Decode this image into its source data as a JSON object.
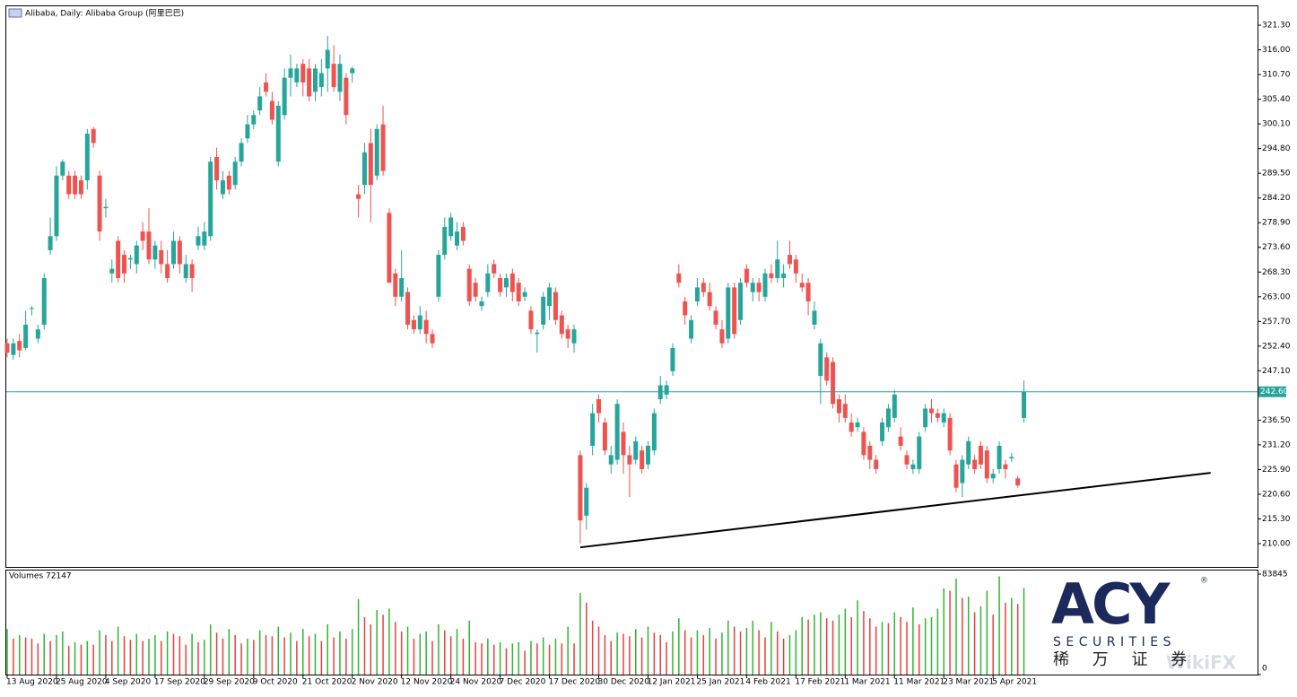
{
  "chart_data": [
    {
      "type": "candlestick",
      "title": "Alibaba, Daily:  Alibaba Group (阿里巴巴)",
      "categories": [
        "13 Aug 2020",
        null,
        null,
        null,
        null,
        null,
        null,
        null,
        "25 Aug 2020",
        null,
        null,
        null,
        null,
        null,
        null,
        null,
        "4 Sep 2020",
        null,
        null,
        null,
        null,
        null,
        null,
        null,
        "17 Sep 2020",
        null,
        null,
        null,
        null,
        null,
        null,
        null,
        "29 Sep 2020",
        null,
        null,
        null,
        null,
        null,
        null,
        null,
        "9 Oct 2020",
        null,
        null,
        null,
        null,
        null,
        null,
        null,
        "21 Oct 2020",
        null,
        null,
        null,
        null,
        null,
        null,
        null,
        "2 Nov 2020",
        null,
        null,
        null,
        null,
        null,
        null,
        null,
        "12 Nov 2020",
        null,
        null,
        null,
        null,
        null,
        null,
        null,
        "24 Nov 2020",
        null,
        null,
        null,
        null,
        null,
        null,
        null,
        "7 Dec 2020",
        null,
        null,
        null,
        null,
        null,
        null,
        null,
        "17 Dec 2020",
        null,
        null,
        null,
        null,
        null,
        null,
        null,
        "30 Dec 2020",
        null,
        null,
        null,
        null,
        null,
        null,
        null,
        "12 Jan 2021",
        null,
        null,
        null,
        null,
        null,
        null,
        null,
        "25 Jan 2021",
        null,
        null,
        null,
        null,
        null,
        null,
        null,
        "4 Feb 2021",
        null,
        null,
        null,
        null,
        null,
        null,
        null,
        "17 Feb 2021",
        null,
        null,
        null,
        null,
        null,
        null,
        null,
        "1 Mar 2021",
        null,
        null,
        null,
        null,
        null,
        null,
        null,
        "11 Mar 2021",
        null,
        null,
        null,
        null,
        null,
        null,
        null,
        "23 Mar 2021",
        null,
        null,
        null,
        null,
        null,
        null,
        null,
        "5 Apr 2021",
        null,
        null,
        null,
        null,
        null
      ],
      "open": [
        253,
        250.5,
        253.5,
        252,
        260.5,
        254,
        257,
        273,
        276,
        289,
        289,
        289,
        288,
        288,
        299,
        289,
        282,
        268,
        275,
        272,
        271,
        270,
        277,
        277,
        271,
        273,
        270,
        270,
        275,
        267,
        270,
        274,
        274,
        276,
        293,
        285,
        289,
        287,
        292,
        297,
        300,
        303,
        309,
        305,
        292,
        302,
        310,
        309,
        313,
        312,
        307,
        308,
        312,
        313,
        307,
        310,
        311,
        285,
        287,
        296,
        289,
        300,
        281,
        268,
        263,
        264,
        258,
        256,
        258,
        255,
        263,
        272,
        276,
        274,
        278,
        269,
        266,
        261,
        264,
        270,
        267,
        265,
        268,
        266,
        263,
        260,
        255,
        257,
        261,
        264,
        259,
        256,
        253,
        229,
        216,
        231,
        241,
        236,
        227,
        228,
        234,
        229,
        228,
        230,
        227,
        230,
        241,
        242,
        247,
        268,
        262,
        254,
        262,
        266,
        264,
        260,
        256,
        254,
        265,
        258,
        269,
        264,
        266,
        263,
        268,
        267,
        267,
        272,
        271,
        266,
        266,
        257,
        246,
        250,
        249,
        241,
        240,
        236,
        235,
        234,
        231,
        228,
        232,
        235,
        237,
        233,
        229,
        226,
        226,
        235,
        239,
        238,
        236,
        237,
        227,
        223,
        227,
        228,
        231,
        230,
        224,
        226,
        227,
        228.3,
        224,
        237
      ],
      "high": [
        254,
        254,
        255,
        260,
        261,
        257,
        268,
        280,
        291,
        292.5,
        290,
        290,
        289,
        299,
        299.5,
        290,
        284,
        271,
        276,
        273,
        272,
        275,
        279,
        282,
        275,
        275,
        273,
        277,
        276,
        272,
        271,
        278,
        279,
        293,
        295,
        290,
        290,
        293,
        297,
        302,
        303,
        308,
        311,
        307,
        305,
        312,
        315,
        313,
        314,
        314,
        313,
        314,
        319,
        317,
        315,
        311,
        312.5,
        287,
        296,
        299,
        300,
        304,
        282,
        269,
        273,
        265,
        259,
        261,
        260,
        256,
        273,
        280,
        281,
        279,
        279,
        270,
        267,
        263,
        270,
        271,
        268,
        268,
        269,
        267,
        265,
        261,
        256,
        264,
        266,
        265,
        260,
        257,
        257,
        230,
        223,
        240,
        242,
        237,
        231,
        241,
        236,
        231,
        233,
        231,
        232,
        239,
        246,
        245,
        253,
        270,
        263,
        259,
        267,
        267,
        266,
        261,
        258,
        266,
        266,
        267,
        270,
        267,
        267,
        269,
        270,
        275,
        270,
        275,
        272,
        268,
        267,
        262,
        254,
        251,
        250,
        242,
        242,
        238,
        237,
        235,
        232,
        229,
        237,
        240,
        243,
        235,
        230,
        228,
        234,
        240,
        241,
        239,
        239,
        238,
        228,
        229,
        233,
        229,
        232,
        231,
        226,
        232,
        228,
        229.5,
        224.5,
        245
      ],
      "low": [
        250,
        249.5,
        250,
        251.5,
        259,
        253,
        256,
        272,
        275,
        288,
        284,
        284,
        284,
        286,
        295,
        275,
        280,
        266,
        266,
        266,
        269,
        268,
        273,
        270,
        269,
        268,
        266,
        269,
        268,
        266,
        264,
        273,
        273,
        275,
        286,
        284,
        285,
        286,
        291,
        296,
        299,
        302,
        306,
        300,
        291,
        301,
        306,
        308,
        306,
        305,
        305,
        306,
        307,
        307,
        305,
        300,
        309,
        280,
        285,
        279,
        288,
        289,
        266,
        261,
        262,
        256,
        255,
        255,
        253,
        252,
        262,
        271,
        275,
        273,
        274,
        261,
        262,
        260,
        263,
        267,
        263,
        263,
        262,
        261,
        262,
        255,
        251,
        256,
        258,
        257,
        254,
        252,
        251,
        210,
        213,
        229,
        236,
        229,
        225,
        227,
        225,
        220,
        227,
        225,
        226,
        229,
        240,
        241,
        246,
        265,
        257,
        253,
        261,
        263,
        260,
        256,
        252,
        253,
        254,
        257,
        265,
        262,
        262,
        262,
        266,
        266,
        265,
        269,
        266,
        264,
        259,
        256,
        240,
        244,
        239,
        236,
        236,
        233,
        234,
        228,
        226,
        225,
        231,
        234,
        236,
        230,
        226,
        225,
        225,
        234,
        236,
        236,
        235,
        229,
        221,
        220,
        226,
        225,
        226,
        223,
        223,
        225,
        224,
        227.5,
        222,
        236
      ],
      "close": [
        251,
        253,
        251.5,
        257,
        260.6,
        256,
        267,
        276,
        289,
        292,
        285,
        285,
        285,
        298,
        296,
        277,
        282.3,
        269,
        267,
        268,
        271.3,
        274,
        275,
        271,
        274,
        270,
        267,
        275,
        270,
        270,
        267,
        276,
        277,
        292,
        288,
        288,
        286,
        292,
        296,
        300,
        302,
        306,
        307,
        301,
        304,
        310,
        312,
        312,
        309,
        306,
        312,
        311,
        316,
        308,
        313,
        302,
        312,
        284,
        294,
        287,
        299,
        290,
        266,
        263,
        267,
        257,
        256,
        259,
        255,
        253,
        272,
        278,
        280,
        277,
        275,
        262,
        263,
        262,
        268,
        268,
        264,
        267,
        264,
        262,
        264,
        256,
        255.3,
        263,
        265,
        258,
        255,
        254,
        256,
        215,
        222,
        238,
        238,
        230,
        229,
        240,
        229,
        227,
        232,
        226,
        231,
        238,
        244,
        244,
        252,
        266,
        259,
        258,
        265,
        264,
        261,
        257,
        253,
        265,
        255,
        266,
        266,
        266,
        264,
        268,
        267,
        271,
        268,
        270,
        268,
        265,
        262,
        260,
        253,
        245,
        240,
        238,
        237,
        234,
        236,
        229,
        228,
        226,
        236,
        239,
        242,
        231,
        227,
        227,
        233,
        239,
        238,
        237,
        238,
        230,
        222,
        228,
        232,
        226,
        227,
        224,
        225,
        231,
        226,
        228.6,
        222.5,
        242.6
      ],
      "up_color": "#26a69a",
      "down_color": "#ef5350",
      "ylim": [
        205.0,
        325.35
      ],
      "yticks": [
        {
          "value": 321.3,
          "label": "321.30"
        },
        {
          "value": 316,
          "label": "316.00"
        },
        {
          "value": 310.7,
          "label": "310.70"
        },
        {
          "value": 305.4,
          "label": "305.40"
        },
        {
          "value": 300.1,
          "label": "300.10"
        },
        {
          "value": 294.8,
          "label": "294.80"
        },
        {
          "value": 289.5,
          "label": "289.50"
        },
        {
          "value": 284.2,
          "label": "284.20"
        },
        {
          "value": 278.9,
          "label": "278.90"
        },
        {
          "value": 273.6,
          "label": "273.60"
        },
        {
          "value": 268.3,
          "label": "268.30"
        },
        {
          "value": 263,
          "label": "263.00"
        },
        {
          "value": 257.7,
          "label": "257.70"
        },
        {
          "value": 252.4,
          "label": "252.40"
        },
        {
          "value": 247.1,
          "label": "247.10"
        },
        {
          "value": 236.5,
          "label": "236.50"
        },
        {
          "value": 231.2,
          "label": "231.20"
        },
        {
          "value": 225.9,
          "label": "225.90"
        },
        {
          "value": 220.6,
          "label": "220.60"
        },
        {
          "value": 215.3,
          "label": "215.30"
        },
        {
          "value": 210,
          "label": "210.00"
        }
      ],
      "current_price": {
        "value": 242.6,
        "label": "242.60",
        "color": "#26a69a"
      },
      "trendline": {
        "x": [
          93,
          195.3
        ],
        "y": [
          209.2,
          225.2
        ],
        "color": "#000000"
      }
    },
    {
      "type": "bar",
      "title": "Volumes 72147",
      "values": [
        38000,
        30000,
        33000,
        31000,
        30000,
        26000,
        34000,
        28000,
        33000,
        36000,
        24000,
        27000,
        25000,
        28000,
        25000,
        37000,
        33000,
        28000,
        40000,
        32000,
        29000,
        34000,
        28000,
        30000,
        33000,
        28000,
        36000,
        34000,
        32000,
        25000,
        34000,
        27000,
        29000,
        42000,
        35000,
        30000,
        38000,
        33000,
        26000,
        30000,
        29000,
        37000,
        33000,
        32000,
        40000,
        31000,
        35000,
        28000,
        38000,
        32000,
        34000,
        28000,
        42000,
        31000,
        36000,
        30000,
        38000,
        63000,
        48000,
        42000,
        54000,
        50000,
        55000,
        44000,
        36000,
        40000,
        30000,
        34000,
        36000,
        28000,
        42000,
        37000,
        32000,
        38000,
        30000,
        45000,
        27000,
        26000,
        30000,
        25000,
        27000,
        22000,
        26000,
        27000,
        20000,
        28000,
        26000,
        31000,
        25000,
        30000,
        26000,
        40000,
        26000,
        68000,
        60000,
        45000,
        40000,
        33000,
        28000,
        35000,
        34000,
        32000,
        38000,
        31000,
        40000,
        35000,
        33000,
        27000,
        36000,
        47000,
        37000,
        31000,
        37000,
        33000,
        39000,
        30000,
        35000,
        45000,
        40000,
        36000,
        39000,
        45000,
        37000,
        31000,
        44000,
        36000,
        30000,
        33000,
        37000,
        48000,
        46000,
        50000,
        52000,
        47000,
        45000,
        50000,
        55000,
        48000,
        62000,
        53000,
        47000,
        40000,
        44000,
        43000,
        52000,
        48000,
        44000,
        56000,
        42000,
        47000,
        48000,
        55000,
        72000,
        70000,
        80000,
        64000,
        65000,
        52000,
        57000,
        70000,
        50000,
        82000,
        60000,
        64000,
        59000,
        72147
      ],
      "up_color": "#32b432",
      "down_color": "#e8403c",
      "ylim": [
        0,
        83845
      ],
      "yticks": [
        0,
        83845
      ]
    }
  ],
  "logo": {
    "name": "ACY",
    "registered": "®",
    "subtitle": "SECURITIES",
    "chinese": "稀 万 证 券"
  },
  "watermark": "WikiFX"
}
